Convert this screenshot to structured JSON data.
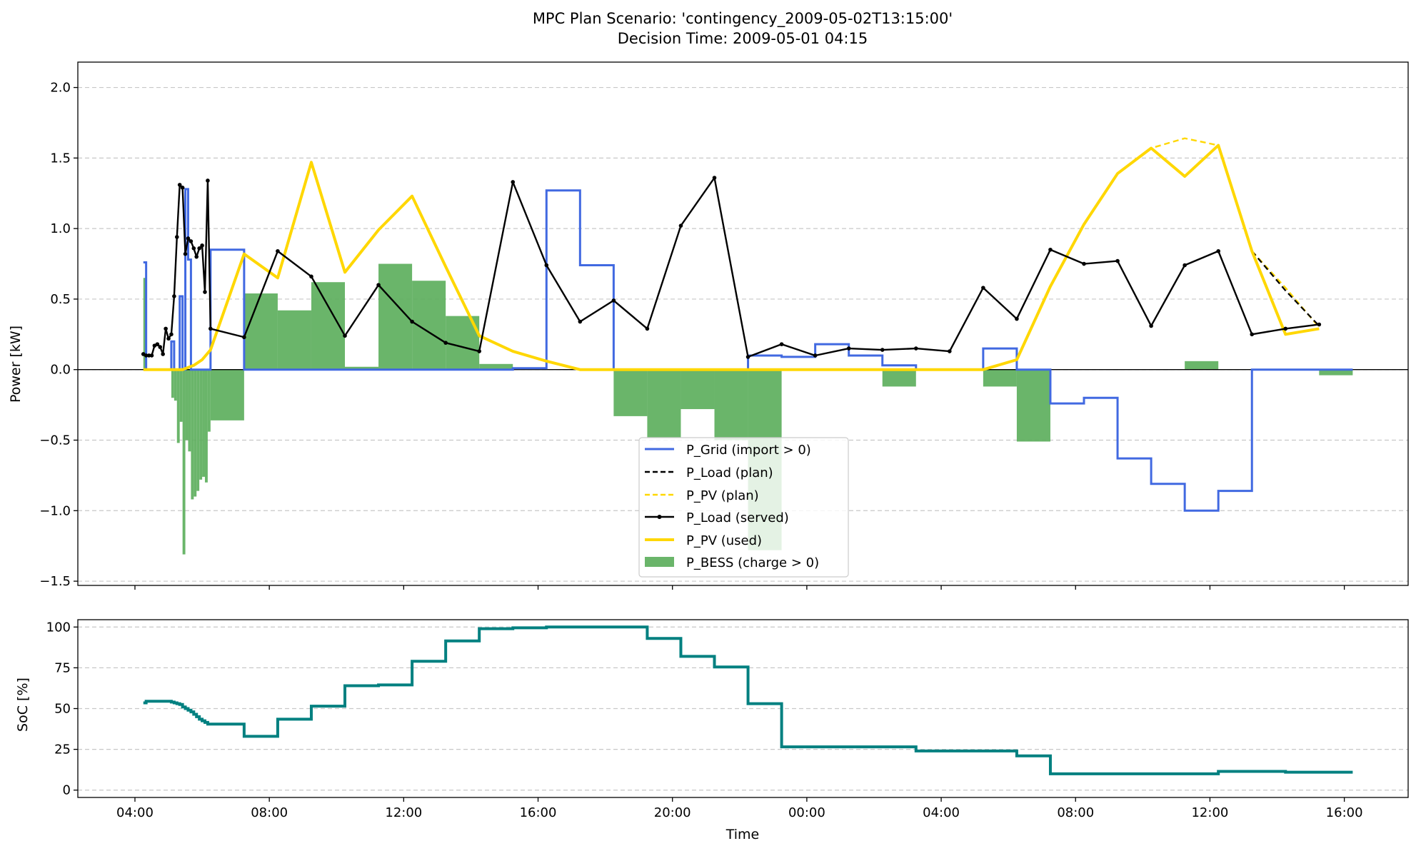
{
  "chart_data": [
    {
      "type": "line",
      "panel": "power",
      "title": "MPC Plan Scenario: 'contingency_2009-05-02T13:15:00'",
      "subtitle": "Decision Time: 2009-05-01 04:15",
      "ylabel": "Power [kW]",
      "xlabel": "",
      "ylim": [
        -1.53,
        2.18
      ],
      "xlim_hours": [
        2.3,
        41.9
      ],
      "yticks": [
        -1.5,
        -1.0,
        -0.5,
        0.0,
        0.5,
        1.0,
        1.5,
        2.0
      ],
      "ytick_labels": [
        "−1.5",
        "−1.0",
        "−0.5",
        "0.0",
        "0.5",
        "1.0",
        "1.5",
        "2.0"
      ],
      "grid": "horizontal dashed",
      "legend_position": "bottom-center",
      "legend": [
        {
          "label": "P_Grid (import > 0)",
          "style": "line",
          "color": "#4169E1"
        },
        {
          "label": "P_Load (plan)",
          "style": "dashed",
          "color": "#000000"
        },
        {
          "label": "P_PV (plan)",
          "style": "dashed",
          "color": "#FFD700"
        },
        {
          "label": "P_Load (served)",
          "style": "line-marker",
          "color": "#000000"
        },
        {
          "label": "P_PV (used)",
          "style": "thick",
          "color": "#FFD700"
        },
        {
          "label": "P_BESS (charge > 0)",
          "style": "patch",
          "color": "#5DAF5D"
        }
      ],
      "series": [
        {
          "name": "P_BESS (charge > 0)",
          "kind": "bar",
          "bars": [
            [
              4.25,
              0.0833,
              0.65
            ],
            [
              4.333,
              0.0833,
              0.0
            ],
            [
              4.417,
              0.0833,
              0.0
            ],
            [
              4.5,
              0.0833,
              0.0
            ],
            [
              4.583,
              0.0833,
              0.0
            ],
            [
              4.667,
              0.0833,
              0.0
            ],
            [
              4.75,
              0.0833,
              0.0
            ],
            [
              4.833,
              0.0833,
              0.0
            ],
            [
              4.917,
              0.0833,
              0.0
            ],
            [
              5.0,
              0.0833,
              0.0
            ],
            [
              5.083,
              0.0833,
              -0.2
            ],
            [
              5.167,
              0.0833,
              -0.22
            ],
            [
              5.25,
              0.0833,
              -0.52
            ],
            [
              5.333,
              0.0833,
              -0.37
            ],
            [
              5.417,
              0.0833,
              -1.31
            ],
            [
              5.5,
              0.0833,
              -0.5
            ],
            [
              5.583,
              0.0833,
              -0.58
            ],
            [
              5.667,
              0.0833,
              -0.92
            ],
            [
              5.75,
              0.0833,
              -0.9
            ],
            [
              5.833,
              0.0833,
              -0.86
            ],
            [
              5.917,
              0.0833,
              -0.78
            ],
            [
              6.0,
              0.0833,
              -0.76
            ],
            [
              6.083,
              0.0833,
              -0.8
            ],
            [
              6.167,
              0.0833,
              -0.44
            ],
            [
              6.25,
              1.0,
              -0.36
            ],
            [
              7.25,
              1.0,
              0.54
            ],
            [
              8.25,
              1.0,
              0.42
            ],
            [
              9.25,
              1.0,
              0.62
            ],
            [
              10.25,
              1.0,
              0.02
            ],
            [
              11.25,
              1.0,
              0.75
            ],
            [
              12.25,
              1.0,
              0.63
            ],
            [
              13.25,
              1.0,
              0.38
            ],
            [
              14.25,
              1.0,
              0.04
            ],
            [
              15.25,
              1.0,
              0.0
            ],
            [
              16.25,
              1.0,
              0.0
            ],
            [
              17.25,
              1.0,
              0.0
            ],
            [
              18.25,
              1.0,
              -0.33
            ],
            [
              19.25,
              1.0,
              -0.48
            ],
            [
              20.25,
              1.0,
              -0.28
            ],
            [
              21.25,
              1.0,
              -0.5
            ],
            [
              22.25,
              1.0,
              -1.28
            ],
            [
              23.25,
              1.0,
              0.0
            ],
            [
              24.25,
              1.0,
              0.0
            ],
            [
              25.25,
              1.0,
              0.0
            ],
            [
              26.25,
              1.0,
              -0.12
            ],
            [
              27.25,
              1.0,
              0.0
            ],
            [
              28.25,
              1.0,
              0.0
            ],
            [
              29.25,
              1.0,
              -0.12
            ],
            [
              30.25,
              1.0,
              -0.51
            ],
            [
              31.25,
              1.0,
              0.0
            ],
            [
              32.25,
              1.0,
              0.0
            ],
            [
              33.25,
              1.0,
              0.0
            ],
            [
              34.25,
              1.0,
              0.0
            ],
            [
              35.25,
              1.0,
              0.06
            ],
            [
              36.25,
              1.0,
              0.0
            ],
            [
              37.25,
              1.0,
              0.0
            ],
            [
              38.25,
              1.0,
              0.0
            ],
            [
              39.25,
              1.0,
              -0.04
            ]
          ]
        },
        {
          "name": "P_Grid (import > 0)",
          "kind": "step-post",
          "x": [
            4.25,
            4.333,
            4.417,
            4.5,
            4.583,
            4.667,
            4.75,
            4.833,
            4.917,
            5.0,
            5.083,
            5.167,
            5.25,
            5.333,
            5.417,
            5.5,
            5.583,
            5.667,
            5.75,
            5.833,
            5.917,
            6.0,
            6.083,
            6.167,
            6.25,
            7.25,
            8.25,
            9.25,
            10.25,
            11.25,
            12.25,
            13.25,
            14.25,
            15.25,
            16.25,
            17.25,
            18.25,
            19.25,
            20.25,
            21.25,
            22.25,
            23.25,
            24.25,
            25.25,
            26.25,
            27.25,
            28.25,
            29.25,
            30.25,
            31.25,
            32.25,
            33.25,
            34.25,
            35.25,
            36.25,
            37.25,
            38.25,
            39.25,
            40.25
          ],
          "y": [
            0.76,
            0.0,
            0.0,
            0.0,
            0.0,
            0.0,
            0.0,
            0.0,
            0.0,
            0.0,
            0.2,
            0.0,
            0.0,
            0.52,
            0.0,
            1.28,
            0.78,
            0.0,
            0.0,
            0.0,
            0.0,
            0.0,
            0.0,
            0.0,
            0.85,
            0.0,
            0.0,
            0.0,
            0.0,
            0.0,
            0.0,
            0.0,
            0.0,
            0.01,
            1.27,
            0.74,
            0.0,
            0.0,
            0.0,
            0.0,
            0.1,
            0.09,
            0.18,
            0.1,
            0.03,
            0.0,
            0.0,
            0.15,
            0.0,
            -0.24,
            -0.2,
            -0.63,
            -0.81,
            -1.0,
            -0.86,
            0.0,
            0.0,
            0.0,
            0.0
          ]
        },
        {
          "name": "P_PV (plan)",
          "kind": "line-dashed",
          "x": [
            33.25,
            34.25,
            35.25,
            36.25,
            37.25,
            38.25,
            39.25
          ],
          "y": [
            1.39,
            1.57,
            1.64,
            1.59,
            0.84,
            0.58,
            0.3
          ]
        },
        {
          "name": "P_Load (plan)",
          "kind": "line-dashed",
          "x": [
            37.25,
            38.25,
            39.25
          ],
          "y": [
            0.84,
            0.56,
            0.31
          ]
        },
        {
          "name": "P_PV (used)",
          "kind": "line",
          "x": [
            4.25,
            5.417,
            5.75,
            6.0,
            6.25,
            7.25,
            8.25,
            9.25,
            10.25,
            11.25,
            12.25,
            13.25,
            14.25,
            15.25,
            16.25,
            17.25,
            18.25,
            19.25,
            20.25,
            21.25,
            22.25,
            23.25,
            24.25,
            25.25,
            26.25,
            27.25,
            28.25,
            29.25,
            30.25,
            31.25,
            32.25,
            33.25,
            34.25,
            35.25,
            36.25,
            37.25,
            38.25,
            39.25
          ],
          "y": [
            0.0,
            0.0,
            0.03,
            0.07,
            0.14,
            0.82,
            0.65,
            1.47,
            0.69,
            0.99,
            1.23,
            0.73,
            0.24,
            0.13,
            0.06,
            0.0,
            0.0,
            0.0,
            0.0,
            0.0,
            0.0,
            0.0,
            0.0,
            0.0,
            0.0,
            0.0,
            0.0,
            0.0,
            0.07,
            0.59,
            1.03,
            1.39,
            1.57,
            1.37,
            1.59,
            0.84,
            0.25,
            0.29
          ]
        },
        {
          "name": "P_Load (served)",
          "kind": "line-marker",
          "x": [
            4.25,
            4.333,
            4.417,
            4.5,
            4.583,
            4.667,
            4.75,
            4.833,
            4.917,
            5.0,
            5.083,
            5.167,
            5.25,
            5.333,
            5.417,
            5.5,
            5.583,
            5.667,
            5.75,
            5.833,
            5.917,
            6.0,
            6.083,
            6.167,
            6.25,
            7.25,
            8.25,
            9.25,
            10.25,
            11.25,
            12.25,
            13.25,
            14.25,
            15.25,
            16.25,
            17.25,
            18.25,
            19.25,
            20.25,
            21.25,
            22.25,
            23.25,
            24.25,
            25.25,
            26.25,
            27.25,
            28.25,
            29.25,
            30.25,
            31.25,
            32.25,
            33.25,
            34.25,
            35.25,
            36.25,
            37.25,
            38.25,
            39.25
          ],
          "y": [
            0.11,
            0.1,
            0.1,
            0.1,
            0.17,
            0.18,
            0.16,
            0.11,
            0.29,
            0.22,
            0.25,
            0.52,
            0.94,
            1.31,
            1.29,
            0.82,
            0.93,
            0.91,
            0.86,
            0.8,
            0.86,
            0.88,
            0.55,
            1.34,
            0.29,
            0.23,
            0.84,
            0.66,
            0.24,
            0.6,
            0.34,
            0.19,
            0.13,
            1.33,
            0.74,
            0.34,
            0.49,
            0.29,
            1.02,
            1.36,
            0.09,
            0.18,
            0.1,
            0.15,
            0.14,
            0.15,
            0.13,
            0.58,
            0.36,
            0.85,
            0.75,
            0.77,
            0.31,
            0.74,
            0.84,
            0.25,
            0.29,
            0.32
          ]
        }
      ]
    },
    {
      "type": "line",
      "panel": "soc",
      "title": "",
      "xlabel": "Time",
      "ylabel": "SoC [%]",
      "ylim": [
        -4.5,
        104.5
      ],
      "xlim_hours": [
        2.3,
        41.9
      ],
      "yticks": [
        0,
        25,
        50,
        75,
        100
      ],
      "ytick_labels": [
        "0",
        "25",
        "50",
        "75",
        "100"
      ],
      "xticks_hours": [
        4,
        8,
        12,
        16,
        20,
        24,
        28,
        32,
        36,
        40
      ],
      "xtick_labels": [
        "04:00",
        "08:00",
        "12:00",
        "16:00",
        "20:00",
        "00:00",
        "04:00",
        "08:00",
        "12:00",
        "16:00"
      ],
      "grid": "horizontal dashed",
      "series": [
        {
          "name": "SoC",
          "kind": "step-post",
          "color": "#008080",
          "x": [
            4.25,
            4.333,
            4.417,
            4.5,
            4.583,
            4.667,
            4.75,
            4.833,
            4.917,
            5.0,
            5.083,
            5.167,
            5.25,
            5.333,
            5.417,
            5.5,
            5.583,
            5.667,
            5.75,
            5.833,
            5.917,
            6.0,
            6.083,
            6.167,
            6.25,
            7.25,
            8.25,
            9.25,
            10.25,
            11.25,
            12.25,
            13.25,
            14.25,
            15.25,
            16.25,
            17.25,
            18.25,
            19.25,
            20.25,
            21.25,
            22.25,
            23.25,
            24.25,
            25.25,
            26.25,
            27.25,
            28.25,
            29.25,
            30.25,
            31.25,
            32.25,
            33.25,
            34.25,
            35.25,
            36.25,
            37.25,
            38.25,
            39.25
          ],
          "y": [
            53.5,
            54.5,
            54.5,
            54.5,
            54.5,
            54.5,
            54.5,
            54.5,
            54.5,
            54.5,
            54.0,
            53.5,
            53.0,
            52.5,
            51.0,
            50.0,
            49.0,
            48.0,
            46.5,
            45.0,
            43.5,
            42.5,
            41.5,
            40.5,
            40.5,
            33.0,
            43.5,
            51.5,
            64.0,
            64.5,
            79.0,
            91.5,
            99.0,
            99.5,
            100.0,
            100.0,
            100.0,
            93.0,
            82.0,
            75.5,
            53.0,
            26.5,
            26.5,
            26.5,
            26.5,
            24.0,
            24.0,
            24.0,
            21.0,
            10.0,
            10.0,
            10.0,
            10.0,
            10.0,
            11.5,
            11.5,
            11.0,
            11.0
          ]
        }
      ]
    }
  ]
}
